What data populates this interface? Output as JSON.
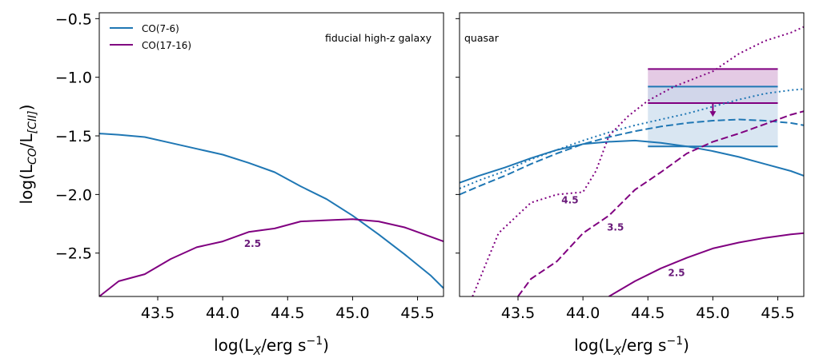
{
  "colors": {
    "co76": "#1f77b4",
    "co1716": "#800080",
    "co1716_label": "#6a1b7a",
    "purple_band_fill": "#d9b3d9",
    "blue_band_fill": "#c9dcec"
  },
  "shared_axes": {
    "ylabel_prefix": "log(L",
    "ylabel_sub_co": "CO",
    "ylabel_slash": "/L",
    "ylabel_sub_ci": "[CII]",
    "ylabel_suffix": ")",
    "xlabel_prefix": "log(L",
    "xlabel_sub": "X",
    "xlabel_mid": "/erg s",
    "xlabel_sup": "−1",
    "xlabel_suffix": ")",
    "xlim": [
      43.05,
      45.7
    ],
    "ylim": [
      -2.87,
      -0.45
    ],
    "xticks": [
      43.5,
      44.0,
      44.5,
      45.0,
      45.5
    ],
    "xtick_labels": [
      "43.5",
      "44.0",
      "44.5",
      "45.0",
      "45.5"
    ],
    "yticks": [
      -0.5,
      -1.0,
      -1.5,
      -2.0,
      -2.5
    ],
    "ytick_labels": [
      "−0.5",
      "−1.0",
      "−1.5",
      "−2.0",
      "−2.5"
    ]
  },
  "legend": {
    "items": [
      {
        "label": "CO(7-6)",
        "color_key": "co76"
      },
      {
        "label": "CO(17-16)",
        "color_key": "co1716"
      }
    ]
  },
  "chart_data": [
    {
      "type": "line",
      "panel": "left",
      "title": "fiducial high-z galaxy",
      "series": [
        {
          "name": "CO(7-6)",
          "style": "solid",
          "color_key": "co76",
          "x": [
            43.05,
            43.2,
            43.4,
            43.6,
            43.8,
            44.0,
            44.2,
            44.4,
            44.6,
            44.8,
            45.0,
            45.2,
            45.4,
            45.6,
            45.7
          ],
          "y": [
            -1.48,
            -1.49,
            -1.51,
            -1.56,
            -1.61,
            -1.66,
            -1.73,
            -1.81,
            -1.93,
            -2.04,
            -2.18,
            -2.34,
            -2.51,
            -2.69,
            -2.8
          ]
        },
        {
          "name": "CO(17-16)",
          "style": "solid",
          "color_key": "co1716",
          "x": [
            43.05,
            43.2,
            43.4,
            43.6,
            43.8,
            44.0,
            44.2,
            44.4,
            44.6,
            44.8,
            45.0,
            45.2,
            45.4,
            45.6,
            45.7
          ],
          "y": [
            -2.87,
            -2.74,
            -2.68,
            -2.55,
            -2.45,
            -2.4,
            -2.32,
            -2.29,
            -2.23,
            -2.22,
            -2.21,
            -2.23,
            -2.28,
            -2.36,
            -2.4
          ]
        }
      ],
      "annotations": [
        {
          "text": "2.5",
          "x": 44.23,
          "y": -2.42
        }
      ]
    },
    {
      "type": "line",
      "panel": "right",
      "title": "quasar",
      "series": [
        {
          "name": "CO(7-6) 2.5",
          "style": "solid",
          "color_key": "co76",
          "x": [
            43.05,
            43.2,
            43.4,
            43.6,
            43.8,
            44.0,
            44.2,
            44.4,
            44.6,
            44.8,
            45.0,
            45.2,
            45.4,
            45.6,
            45.7
          ],
          "y": [
            -1.9,
            -1.84,
            -1.77,
            -1.69,
            -1.62,
            -1.57,
            -1.55,
            -1.54,
            -1.56,
            -1.59,
            -1.63,
            -1.68,
            -1.74,
            -1.8,
            -1.84
          ]
        },
        {
          "name": "CO(7-6) 3.5",
          "style": "dashed",
          "color_key": "co76",
          "x": [
            43.05,
            43.2,
            43.4,
            43.6,
            43.8,
            44.0,
            44.2,
            44.4,
            44.6,
            44.8,
            45.0,
            45.2,
            45.4,
            45.6,
            45.7
          ],
          "y": [
            -2.0,
            -1.93,
            -1.84,
            -1.74,
            -1.65,
            -1.57,
            -1.51,
            -1.46,
            -1.42,
            -1.39,
            -1.37,
            -1.36,
            -1.37,
            -1.39,
            -1.41
          ]
        },
        {
          "name": "CO(7-6) 4.5",
          "style": "dotted",
          "color_key": "co76",
          "x": [
            43.05,
            43.2,
            43.4,
            43.6,
            43.8,
            44.0,
            44.2,
            44.4,
            44.6,
            44.8,
            45.0,
            45.2,
            45.4,
            45.6,
            45.7
          ],
          "y": [
            -1.95,
            -1.88,
            -1.8,
            -1.7,
            -1.62,
            -1.54,
            -1.47,
            -1.41,
            -1.36,
            -1.31,
            -1.25,
            -1.19,
            -1.14,
            -1.11,
            -1.1
          ]
        },
        {
          "name": "CO(17-16) 2.5",
          "style": "solid",
          "color_key": "co1716",
          "x": [
            44.2,
            44.4,
            44.6,
            44.8,
            45.0,
            45.2,
            45.4,
            45.6,
            45.7
          ],
          "y": [
            -2.87,
            -2.74,
            -2.63,
            -2.54,
            -2.46,
            -2.41,
            -2.37,
            -2.34,
            -2.33
          ]
        },
        {
          "name": "CO(17-16) 3.5",
          "style": "dashed",
          "color_key": "co1716",
          "x": [
            43.5,
            43.6,
            43.8,
            44.0,
            44.2,
            44.4,
            44.6,
            44.8,
            45.0,
            45.2,
            45.4,
            45.6,
            45.7
          ],
          "y": [
            -2.87,
            -2.72,
            -2.57,
            -2.33,
            -2.18,
            -1.96,
            -1.81,
            -1.65,
            -1.55,
            -1.48,
            -1.4,
            -1.32,
            -1.29
          ]
        },
        {
          "name": "CO(17-16) 4.5",
          "style": "dotted",
          "color_key": "co1716",
          "x": [
            43.15,
            43.35,
            43.6,
            43.8,
            44.0,
            44.1,
            44.2,
            44.35,
            44.5,
            44.7,
            45.0,
            45.2,
            45.4,
            45.6,
            45.7
          ],
          "y": [
            -2.87,
            -2.33,
            -2.07,
            -2.0,
            -1.98,
            -1.8,
            -1.5,
            -1.33,
            -1.2,
            -1.08,
            -0.95,
            -0.8,
            -0.69,
            -0.62,
            -0.57
          ]
        }
      ],
      "bands": [
        {
          "name": "CO(17-16) range",
          "color_key": "co1716",
          "fill_key": "purple_band_fill",
          "x": [
            44.5,
            45.5
          ],
          "y": [
            -1.22,
            -0.93
          ]
        },
        {
          "name": "CO(7-6) range",
          "color_key": "co76",
          "fill_key": "blue_band_fill",
          "x": [
            44.5,
            45.5
          ],
          "y": [
            -1.59,
            -1.08
          ]
        }
      ],
      "upper_limit_arrow": {
        "x": 45.0,
        "y_from": -1.22,
        "y_to": -1.33,
        "color_key": "co1716"
      },
      "annotations": [
        {
          "text": "4.5",
          "x": 43.9,
          "y": -2.05
        },
        {
          "text": "3.5",
          "x": 44.25,
          "y": -2.28
        },
        {
          "text": "2.5",
          "x": 44.72,
          "y": -2.67
        }
      ]
    }
  ]
}
